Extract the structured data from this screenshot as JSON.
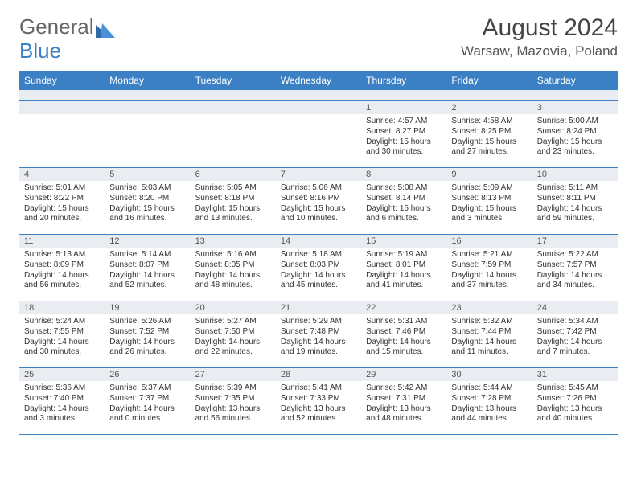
{
  "logo": {
    "text1": "General",
    "text2": "Blue"
  },
  "title": "August 2024",
  "location": "Warsaw, Mazovia, Poland",
  "colors": {
    "header_bg": "#3b7fc4",
    "header_text": "#ffffff",
    "daynum_bg": "#e9edf1",
    "border": "#3b7fc4",
    "body_text": "#333333",
    "background": "#ffffff"
  },
  "dayHeaders": [
    "Sunday",
    "Monday",
    "Tuesday",
    "Wednesday",
    "Thursday",
    "Friday",
    "Saturday"
  ],
  "weeks": [
    [
      null,
      null,
      null,
      null,
      {
        "n": "1",
        "sr": "4:57 AM",
        "ss": "8:27 PM",
        "dl": "15 hours and 30 minutes."
      },
      {
        "n": "2",
        "sr": "4:58 AM",
        "ss": "8:25 PM",
        "dl": "15 hours and 27 minutes."
      },
      {
        "n": "3",
        "sr": "5:00 AM",
        "ss": "8:24 PM",
        "dl": "15 hours and 23 minutes."
      }
    ],
    [
      {
        "n": "4",
        "sr": "5:01 AM",
        "ss": "8:22 PM",
        "dl": "15 hours and 20 minutes."
      },
      {
        "n": "5",
        "sr": "5:03 AM",
        "ss": "8:20 PM",
        "dl": "15 hours and 16 minutes."
      },
      {
        "n": "6",
        "sr": "5:05 AM",
        "ss": "8:18 PM",
        "dl": "15 hours and 13 minutes."
      },
      {
        "n": "7",
        "sr": "5:06 AM",
        "ss": "8:16 PM",
        "dl": "15 hours and 10 minutes."
      },
      {
        "n": "8",
        "sr": "5:08 AM",
        "ss": "8:14 PM",
        "dl": "15 hours and 6 minutes."
      },
      {
        "n": "9",
        "sr": "5:09 AM",
        "ss": "8:13 PM",
        "dl": "15 hours and 3 minutes."
      },
      {
        "n": "10",
        "sr": "5:11 AM",
        "ss": "8:11 PM",
        "dl": "14 hours and 59 minutes."
      }
    ],
    [
      {
        "n": "11",
        "sr": "5:13 AM",
        "ss": "8:09 PM",
        "dl": "14 hours and 56 minutes."
      },
      {
        "n": "12",
        "sr": "5:14 AM",
        "ss": "8:07 PM",
        "dl": "14 hours and 52 minutes."
      },
      {
        "n": "13",
        "sr": "5:16 AM",
        "ss": "8:05 PM",
        "dl": "14 hours and 48 minutes."
      },
      {
        "n": "14",
        "sr": "5:18 AM",
        "ss": "8:03 PM",
        "dl": "14 hours and 45 minutes."
      },
      {
        "n": "15",
        "sr": "5:19 AM",
        "ss": "8:01 PM",
        "dl": "14 hours and 41 minutes."
      },
      {
        "n": "16",
        "sr": "5:21 AM",
        "ss": "7:59 PM",
        "dl": "14 hours and 37 minutes."
      },
      {
        "n": "17",
        "sr": "5:22 AM",
        "ss": "7:57 PM",
        "dl": "14 hours and 34 minutes."
      }
    ],
    [
      {
        "n": "18",
        "sr": "5:24 AM",
        "ss": "7:55 PM",
        "dl": "14 hours and 30 minutes."
      },
      {
        "n": "19",
        "sr": "5:26 AM",
        "ss": "7:52 PM",
        "dl": "14 hours and 26 minutes."
      },
      {
        "n": "20",
        "sr": "5:27 AM",
        "ss": "7:50 PM",
        "dl": "14 hours and 22 minutes."
      },
      {
        "n": "21",
        "sr": "5:29 AM",
        "ss": "7:48 PM",
        "dl": "14 hours and 19 minutes."
      },
      {
        "n": "22",
        "sr": "5:31 AM",
        "ss": "7:46 PM",
        "dl": "14 hours and 15 minutes."
      },
      {
        "n": "23",
        "sr": "5:32 AM",
        "ss": "7:44 PM",
        "dl": "14 hours and 11 minutes."
      },
      {
        "n": "24",
        "sr": "5:34 AM",
        "ss": "7:42 PM",
        "dl": "14 hours and 7 minutes."
      }
    ],
    [
      {
        "n": "25",
        "sr": "5:36 AM",
        "ss": "7:40 PM",
        "dl": "14 hours and 3 minutes."
      },
      {
        "n": "26",
        "sr": "5:37 AM",
        "ss": "7:37 PM",
        "dl": "14 hours and 0 minutes."
      },
      {
        "n": "27",
        "sr": "5:39 AM",
        "ss": "7:35 PM",
        "dl": "13 hours and 56 minutes."
      },
      {
        "n": "28",
        "sr": "5:41 AM",
        "ss": "7:33 PM",
        "dl": "13 hours and 52 minutes."
      },
      {
        "n": "29",
        "sr": "5:42 AM",
        "ss": "7:31 PM",
        "dl": "13 hours and 48 minutes."
      },
      {
        "n": "30",
        "sr": "5:44 AM",
        "ss": "7:28 PM",
        "dl": "13 hours and 44 minutes."
      },
      {
        "n": "31",
        "sr": "5:45 AM",
        "ss": "7:26 PM",
        "dl": "13 hours and 40 minutes."
      }
    ]
  ],
  "labels": {
    "sunrise": "Sunrise: ",
    "sunset": "Sunset: ",
    "daylight": "Daylight: "
  }
}
